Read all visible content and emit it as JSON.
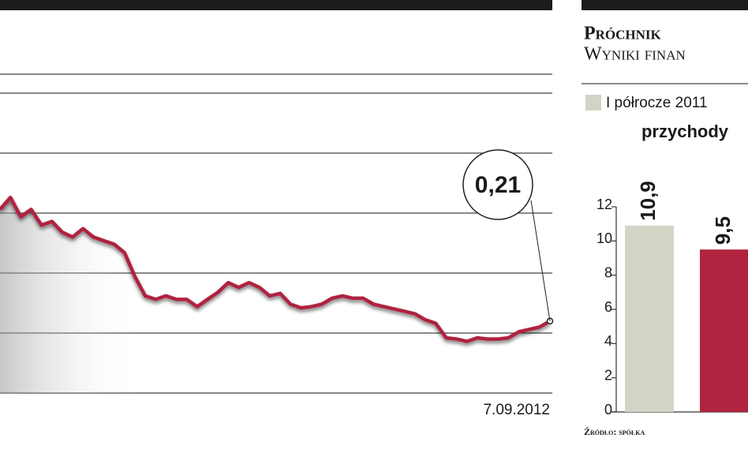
{
  "chart_data": [
    {
      "type": "line",
      "categories": [
        null,
        null,
        null,
        null,
        null,
        null,
        null,
        null,
        null,
        null,
        null,
        null,
        null,
        null,
        null,
        null,
        null,
        null,
        null,
        null,
        null,
        null,
        null,
        null,
        null,
        null,
        null,
        null,
        null,
        null,
        null,
        null,
        null,
        null,
        null,
        null,
        null,
        null,
        null,
        null,
        null,
        null,
        null,
        null,
        null,
        null,
        null,
        null,
        null,
        null,
        null,
        null,
        null,
        "7.09.2012"
      ],
      "series": [
        {
          "color": "#b0243f",
          "values": [
            0.303,
            0.313,
            0.297,
            0.303,
            0.29,
            0.293,
            0.284,
            0.28,
            0.287,
            0.28,
            0.277,
            0.274,
            0.267,
            0.247,
            0.231,
            0.228,
            0.231,
            0.228,
            0.228,
            0.222,
            0.228,
            0.234,
            0.242,
            0.238,
            0.242,
            0.238,
            0.231,
            0.233,
            0.224,
            0.221,
            0.222,
            0.224,
            0.229,
            0.231,
            0.229,
            0.229,
            0.224,
            0.222,
            0.22,
            0.218,
            0.216,
            0.211,
            0.208,
            0.196,
            0.195,
            0.193,
            0.196,
            0.195,
            0.195,
            0.196,
            0.201,
            0.203,
            0.205,
            0.21
          ],
          "value_labels": [
            null,
            null,
            null,
            null,
            null,
            null,
            null,
            null,
            null,
            null,
            null,
            null,
            null,
            null,
            null,
            null,
            null,
            null,
            null,
            null,
            null,
            null,
            null,
            null,
            null,
            null,
            null,
            null,
            null,
            null,
            null,
            null,
            null,
            null,
            null,
            null,
            null,
            null,
            null,
            null,
            null,
            null,
            null,
            null,
            null,
            null,
            null,
            null,
            null,
            null,
            null,
            null,
            null,
            "0,21"
          ]
        }
      ],
      "ylim": [
        0.15,
        0.4
      ],
      "ygrid": [
        0.15,
        0.2,
        0.25,
        0.3,
        0.35,
        0.4
      ]
    },
    {
      "type": "bar",
      "title": "Próchnik",
      "subtitle": "Wyniki finan",
      "y_label": "przychody",
      "series": [
        {
          "name": "I półrocze 2011",
          "color": "#d3d4c6",
          "values": [
            10.9
          ],
          "value_labels": [
            "10,9"
          ]
        },
        {
          "color": "#b0243f",
          "values": [
            9.5
          ],
          "value_labels": [
            "9,5"
          ]
        }
      ],
      "ylim": [
        0,
        12
      ],
      "yticks": [
        0,
        2,
        4,
        6,
        8,
        10,
        12
      ],
      "source": "Źródło: spółka"
    }
  ]
}
